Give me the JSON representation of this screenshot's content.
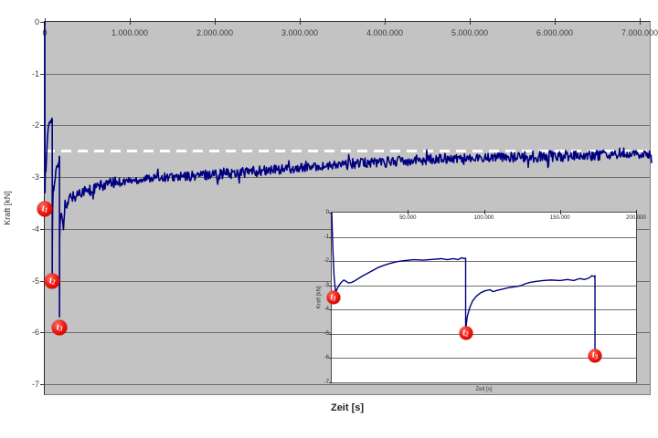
{
  "chart_data": {
    "type": "line",
    "title": "",
    "main": {
      "xlabel": "Zeit [s]",
      "ylabel": "Kraft [kN]",
      "xlim": [
        0,
        7140000
      ],
      "ylim": [
        -7,
        0
      ],
      "grid": "horizontal",
      "plot_bg": "#c3c3c3",
      "xticks": {
        "values": [
          0,
          1000000,
          2000000,
          3000000,
          4000000,
          5000000,
          6000000,
          7000000
        ],
        "labels": [
          "0",
          "1.000.000",
          "2.000.000",
          "3.000.000",
          "4.000.000",
          "5.000.000",
          "6.000.000",
          "7.000.000"
        ]
      },
      "yticks": {
        "values": [
          0,
          -1,
          -2,
          -3,
          -4,
          -5,
          -6,
          -7
        ],
        "labels": [
          "0",
          "-1",
          "-2",
          "-3",
          "-4",
          "-5",
          "-6",
          "-7"
        ]
      },
      "reference_line": {
        "value": -2.5,
        "color": "#ffffff",
        "style": "dashed"
      },
      "markers": [
        {
          "label": "t",
          "sub": "1",
          "t": 0,
          "kN": -3.62
        },
        {
          "label": "t",
          "sub": "2",
          "t": 88000,
          "kN": -5.0
        },
        {
          "label": "t",
          "sub": "3",
          "t": 173000,
          "kN": -5.9
        }
      ]
    },
    "inset": {
      "xlabel": "Zeit [s]",
      "ylabel": "Kraft [kN]",
      "xlim": [
        0,
        200000
      ],
      "ylim": [
        -7,
        0
      ],
      "grid": "horizontal",
      "plot_bg": "#ffffff",
      "xticks": {
        "values": [
          50000,
          100000,
          150000,
          200000
        ],
        "labels": [
          "50.000",
          "100.000",
          "150.000",
          "200.000"
        ]
      },
      "yticks": {
        "values": [
          0,
          -1,
          -2,
          -3,
          -4,
          -5,
          -6,
          -7
        ],
        "labels": [
          "0",
          "-1",
          "-2",
          "-3",
          "-4",
          "-5",
          "-6",
          "-7"
        ]
      },
      "markers": [
        {
          "label": "t",
          "sub": "1",
          "t": 1000,
          "kN": -3.5
        },
        {
          "label": "t",
          "sub": "2",
          "t": 88000,
          "kN": -4.97
        },
        {
          "label": "t",
          "sub": "3",
          "t": 173000,
          "kN": -5.9
        }
      ]
    },
    "series": {
      "name": "Kraft",
      "color": "#000080",
      "noise_amplitude": 0.11,
      "detail_points": [
        [
          0,
          0
        ],
        [
          800,
          -1.6
        ],
        [
          1500,
          -2.6
        ],
        [
          2500,
          -3.3
        ],
        [
          3500,
          -3.15
        ],
        [
          5000,
          -2.98
        ],
        [
          6500,
          -2.86
        ],
        [
          8000,
          -2.78
        ],
        [
          9500,
          -2.84
        ],
        [
          11000,
          -2.9
        ],
        [
          13000,
          -2.88
        ],
        [
          15000,
          -2.82
        ],
        [
          17500,
          -2.72
        ],
        [
          20000,
          -2.62
        ],
        [
          23000,
          -2.52
        ],
        [
          26000,
          -2.42
        ],
        [
          30000,
          -2.28
        ],
        [
          34000,
          -2.18
        ],
        [
          38000,
          -2.1
        ],
        [
          43000,
          -2.02
        ],
        [
          48000,
          -1.98
        ],
        [
          54000,
          -1.94
        ],
        [
          60000,
          -1.96
        ],
        [
          66000,
          -1.93
        ],
        [
          72000,
          -1.9
        ],
        [
          76000,
          -1.94
        ],
        [
          80000,
          -1.9
        ],
        [
          83000,
          -1.94
        ],
        [
          85500,
          -1.86
        ],
        [
          87000,
          -1.9
        ],
        [
          88000,
          -1.88
        ],
        [
          88000,
          -4.85
        ],
        [
          89000,
          -4.3
        ],
        [
          90500,
          -3.95
        ],
        [
          92500,
          -3.65
        ],
        [
          95000,
          -3.45
        ],
        [
          98000,
          -3.3
        ],
        [
          101000,
          -3.22
        ],
        [
          104000,
          -3.18
        ],
        [
          106000,
          -3.26
        ],
        [
          109000,
          -3.2
        ],
        [
          112000,
          -3.16
        ],
        [
          116000,
          -3.1
        ],
        [
          120000,
          -3.06
        ],
        [
          124000,
          -3.02
        ],
        [
          127000,
          -2.94
        ],
        [
          130000,
          -2.88
        ],
        [
          134000,
          -2.84
        ],
        [
          139000,
          -2.8
        ],
        [
          144000,
          -2.78
        ],
        [
          150000,
          -2.8
        ],
        [
          155000,
          -2.76
        ],
        [
          159000,
          -2.8
        ],
        [
          163000,
          -2.72
        ],
        [
          166000,
          -2.76
        ],
        [
          169000,
          -2.7
        ],
        [
          171000,
          -2.6
        ],
        [
          172500,
          -2.64
        ],
        [
          173000,
          -2.6
        ],
        [
          173000,
          -5.7
        ]
      ],
      "trend_points": [
        [
          174500,
          -4.2
        ],
        [
          177000,
          -4.05
        ],
        [
          180000,
          -3.9
        ],
        [
          186000,
          -3.75
        ],
        [
          195000,
          -3.7
        ],
        [
          210000,
          -3.85
        ],
        [
          220000,
          -3.95
        ],
        [
          232000,
          -3.6
        ],
        [
          245000,
          -3.5
        ],
        [
          260000,
          -3.65
        ],
        [
          280000,
          -3.45
        ],
        [
          310000,
          -3.35
        ],
        [
          350000,
          -3.4
        ],
        [
          400000,
          -3.3
        ],
        [
          460000,
          -3.25
        ],
        [
          530000,
          -3.3
        ],
        [
          600000,
          -3.2
        ],
        [
          700000,
          -3.15
        ],
        [
          820000,
          -3.1
        ],
        [
          950000,
          -3.08
        ],
        [
          1100000,
          -3.05
        ],
        [
          1300000,
          -3.0
        ],
        [
          1600000,
          -3.0
        ],
        [
          1900000,
          -2.95
        ],
        [
          2200000,
          -2.92
        ],
        [
          2600000,
          -2.88
        ],
        [
          3000000,
          -2.82
        ],
        [
          3400000,
          -2.78
        ],
        [
          3800000,
          -2.72
        ],
        [
          4200000,
          -2.68
        ],
        [
          4700000,
          -2.64
        ],
        [
          5200000,
          -2.62
        ],
        [
          5800000,
          -2.6
        ],
        [
          6400000,
          -2.58
        ],
        [
          6900000,
          -2.56
        ],
        [
          7140000,
          -2.58
        ]
      ]
    }
  }
}
